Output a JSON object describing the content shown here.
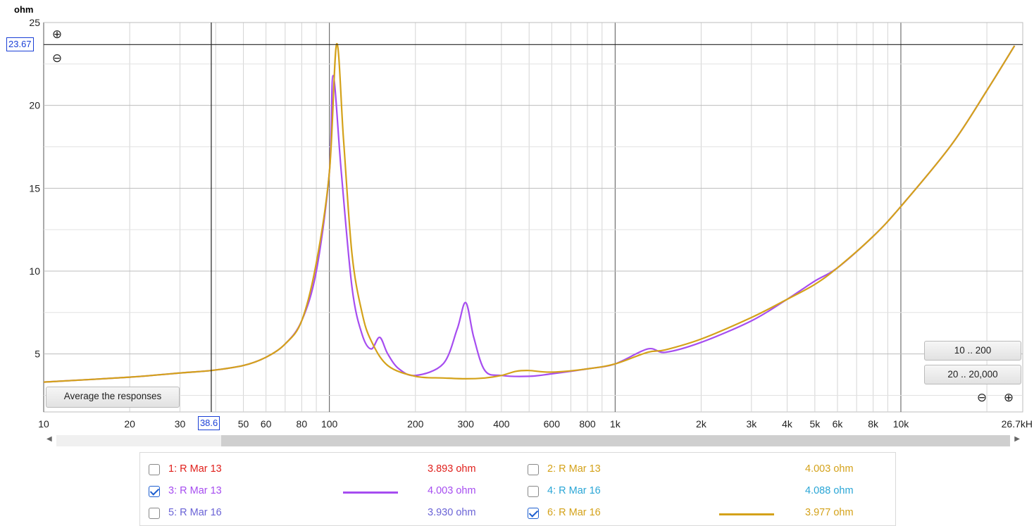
{
  "colors": {
    "trace3": "#a64df0",
    "trace6": "#d4a21a",
    "grid": "#d4d4d4",
    "cursor_box": "#1a3fd6"
  },
  "chart_data": {
    "type": "line",
    "xscale": "log",
    "xlim": [
      10,
      26700
    ],
    "ylim": [
      1.5,
      25
    ],
    "ylabel": "ohm",
    "yticks": [
      "5",
      "10",
      "15",
      "20",
      "25"
    ],
    "xticks": [
      "10",
      "20",
      "30",
      "50",
      "60",
      "80",
      "100",
      "200",
      "300",
      "400",
      "600",
      "800",
      "1k",
      "2k",
      "3k",
      "4k",
      "5k",
      "6k",
      "8k",
      "10k",
      "26.7kH"
    ],
    "cursor": {
      "x": "38.6",
      "y": "23.67"
    },
    "series": [
      {
        "name": "3: R Mar 13",
        "color": "#a64df0",
        "x": [
          10,
          20,
          30,
          38.6,
          50,
          60,
          70,
          80,
          90,
          100,
          103,
          110,
          120,
          130,
          140,
          150,
          160,
          175,
          200,
          250,
          280,
          300,
          320,
          350,
          400,
          500,
          600,
          800,
          1000,
          1300,
          1500,
          2000,
          3000,
          4000,
          5000,
          6000,
          8000,
          10000,
          15000,
          20000,
          25000
        ],
        "y": [
          3.3,
          3.6,
          3.85,
          4.0,
          4.3,
          4.8,
          5.6,
          7.0,
          10.0,
          16.0,
          21.8,
          16.0,
          9.0,
          6.2,
          5.3,
          6.0,
          5.0,
          4.1,
          3.7,
          4.4,
          6.5,
          8.1,
          6.0,
          4.0,
          3.7,
          3.65,
          3.8,
          4.1,
          4.4,
          5.3,
          5.1,
          5.7,
          7.0,
          8.3,
          9.4,
          10.2,
          12.1,
          13.9,
          17.6,
          20.9,
          23.6
        ]
      },
      {
        "name": "6: R Mar 16",
        "color": "#d4a21a",
        "x": [
          10,
          20,
          30,
          38.6,
          50,
          60,
          70,
          80,
          90,
          100,
          106,
          112,
          120,
          130,
          140,
          160,
          200,
          250,
          300,
          350,
          400,
          450,
          500,
          600,
          800,
          1000,
          1300,
          1500,
          2000,
          3000,
          4000,
          5000,
          6000,
          8000,
          10000,
          15000,
          20000,
          25000
        ],
        "y": [
          3.3,
          3.6,
          3.85,
          4.0,
          4.3,
          4.8,
          5.6,
          7.0,
          10.5,
          16.0,
          23.7,
          18.0,
          11.0,
          7.5,
          5.8,
          4.3,
          3.65,
          3.55,
          3.5,
          3.55,
          3.7,
          3.95,
          4.0,
          3.9,
          4.1,
          4.4,
          5.1,
          5.25,
          5.9,
          7.2,
          8.3,
          9.2,
          10.2,
          12.1,
          13.9,
          17.6,
          20.9,
          23.6
        ]
      }
    ]
  },
  "zoom": {
    "in": "⊕",
    "out": "⊖"
  },
  "buttons": {
    "range1": "10 .. 200",
    "range2": "20 .. 20,000",
    "average": "Average the responses"
  },
  "legend": [
    {
      "name": "1: R Mar 13",
      "value": "3.893 ohm",
      "color": "#e0201c",
      "checked": false
    },
    {
      "name": "2: R Mar 13",
      "value": "4.003 ohm",
      "color": "#d4a21a",
      "checked": false
    },
    {
      "name": "3: R Mar 13",
      "value": "4.003 ohm",
      "color": "#a64df0",
      "checked": true
    },
    {
      "name": "4: R Mar 16",
      "value": "4.088 ohm",
      "color": "#2aa6d6",
      "checked": false
    },
    {
      "name": "5: R Mar 16",
      "value": "3.930 ohm",
      "color": "#6a63d6",
      "checked": false
    },
    {
      "name": "6: R Mar 16",
      "value": "3.977 ohm",
      "color": "#d4a21a",
      "checked": true
    }
  ]
}
